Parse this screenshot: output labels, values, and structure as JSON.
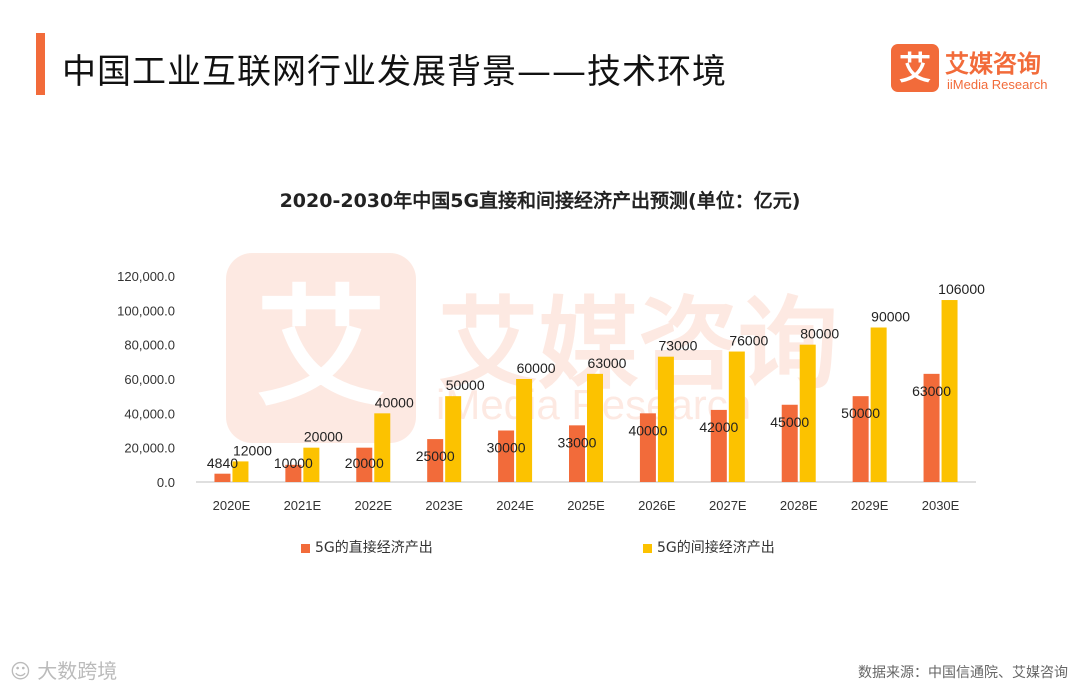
{
  "header": {
    "title": "中国工业互联网行业发展背景——技术环境",
    "accent_color": "#f26b3a"
  },
  "logo": {
    "mark": "艾",
    "name_cn": "艾媒咨询",
    "name_en": "iiMedia Research"
  },
  "watermark": {
    "mark": "艾",
    "name_cn": "艾媒咨询",
    "name_en": "iMedia Research"
  },
  "chart_data": {
    "type": "bar",
    "title": "2020-2030年中国5G直接和间接经济产出预测(单位：亿元)",
    "categories": [
      "2020E",
      "2021E",
      "2022E",
      "2023E",
      "2024E",
      "2025E",
      "2026E",
      "2027E",
      "2028E",
      "2029E",
      "2030E"
    ],
    "series": [
      {
        "name": "5G的直接经济产出",
        "color": "#f26b3a",
        "values": [
          4840,
          10000,
          20000,
          25000,
          30000,
          33000,
          40000,
          42000,
          45000,
          50000,
          63000
        ]
      },
      {
        "name": "5G的间接经济产出",
        "color": "#fcc200",
        "values": [
          12000,
          20000,
          40000,
          50000,
          60000,
          63000,
          73000,
          76000,
          80000,
          90000,
          106000
        ]
      }
    ],
    "yticks": [
      "0.0",
      "20,000.0",
      "40,000.0",
      "60,000.0",
      "80,000.0",
      "100,000.0",
      "120,000.0"
    ],
    "ylim": [
      0,
      120000
    ],
    "grid": false,
    "legend_position": "bottom"
  },
  "footer": {
    "brand": "大数跨境",
    "source": "数据来源：中国信通院、艾媒咨询"
  }
}
